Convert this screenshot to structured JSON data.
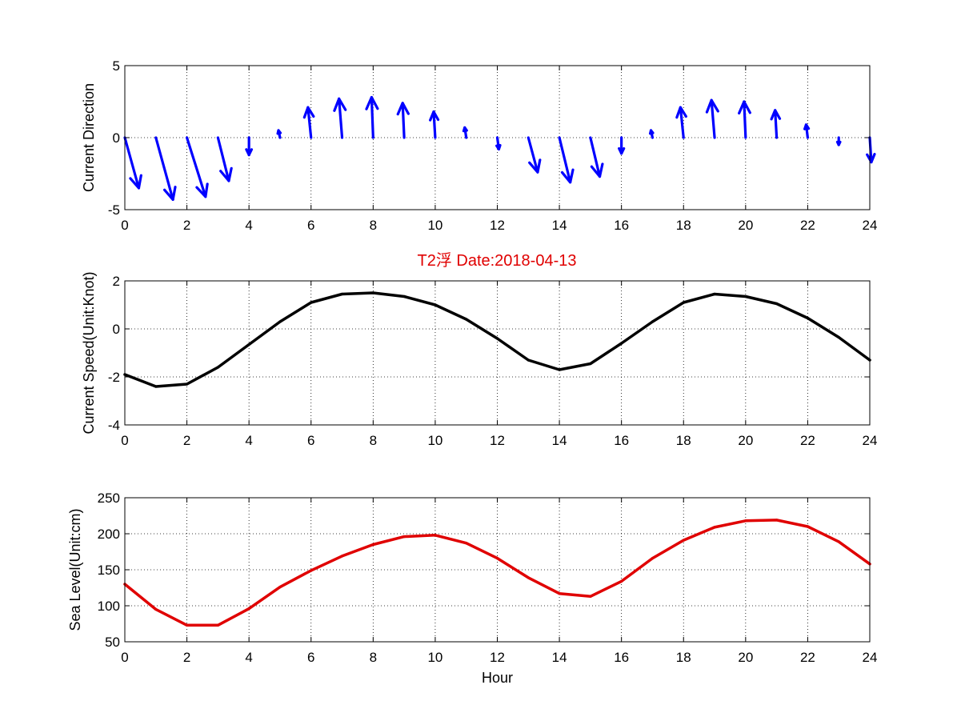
{
  "figure_title": "T2浮    Date:2018-04-13",
  "title_color": "#e00000",
  "chart_data": [
    {
      "type": "quiver",
      "ylabel": "Current Direction",
      "xlabel": "",
      "xlim": [
        0,
        24
      ],
      "ylim": [
        -5,
        5
      ],
      "xticks": [
        0,
        2,
        4,
        6,
        8,
        10,
        12,
        14,
        16,
        18,
        20,
        22,
        24
      ],
      "yticks": [
        -5,
        0,
        5
      ],
      "grid": true,
      "color": "#0000ff",
      "x": [
        0,
        1,
        2,
        3,
        4,
        5,
        6,
        7,
        8,
        9,
        10,
        11,
        12,
        13,
        14,
        15,
        16,
        17,
        18,
        19,
        20,
        21,
        22,
        23,
        24
      ],
      "u": [
        0.45,
        0.55,
        0.6,
        0.35,
        0.0,
        -0.05,
        -0.1,
        -0.1,
        -0.05,
        -0.05,
        -0.05,
        -0.05,
        0.05,
        0.3,
        0.35,
        0.3,
        0.0,
        -0.05,
        -0.1,
        -0.1,
        -0.05,
        -0.05,
        -0.05,
        0.0,
        0.05
      ],
      "v": [
        -3.5,
        -4.3,
        -4.1,
        -3.0,
        -1.2,
        0.5,
        2.1,
        2.7,
        2.8,
        2.4,
        1.8,
        0.7,
        -0.8,
        -2.4,
        -3.1,
        -2.7,
        -1.1,
        0.5,
        2.1,
        2.6,
        2.5,
        1.9,
        0.9,
        -0.5,
        -1.7
      ]
    },
    {
      "type": "line",
      "ylabel": "Current Speed(Unit:Knot)",
      "xlabel": "",
      "xlim": [
        0,
        24
      ],
      "ylim": [
        -4,
        2
      ],
      "xticks": [
        0,
        2,
        4,
        6,
        8,
        10,
        12,
        14,
        16,
        18,
        20,
        22,
        24
      ],
      "yticks": [
        -4,
        -2,
        0,
        2
      ],
      "grid": true,
      "color": "#000000",
      "x": [
        0,
        1,
        2,
        3,
        4,
        5,
        6,
        7,
        8,
        9,
        10,
        11,
        12,
        13,
        14,
        15,
        16,
        17,
        18,
        19,
        20,
        21,
        22,
        23,
        24
      ],
      "y": [
        -1.9,
        -2.4,
        -2.3,
        -1.6,
        -0.65,
        0.3,
        1.1,
        1.45,
        1.5,
        1.35,
        1.0,
        0.4,
        -0.4,
        -1.3,
        -1.7,
        -1.45,
        -0.6,
        0.3,
        1.1,
        1.45,
        1.35,
        1.05,
        0.45,
        -0.35,
        -1.3
      ]
    },
    {
      "type": "line",
      "ylabel": "Sea Level(Unit:cm)",
      "xlabel": "Hour",
      "xlim": [
        0,
        24
      ],
      "ylim": [
        50,
        250
      ],
      "xticks": [
        0,
        2,
        4,
        6,
        8,
        10,
        12,
        14,
        16,
        18,
        20,
        22,
        24
      ],
      "yticks": [
        50,
        100,
        150,
        200,
        250
      ],
      "grid": true,
      "color": "#e00000",
      "x": [
        0,
        1,
        2,
        3,
        4,
        5,
        6,
        7,
        8,
        9,
        10,
        11,
        12,
        13,
        14,
        15,
        16,
        17,
        18,
        19,
        20,
        21,
        22,
        23,
        24
      ],
      "y": [
        130,
        95,
        73,
        73,
        96,
        126,
        149,
        169,
        185,
        196,
        198,
        187,
        166,
        139,
        117,
        113,
        134,
        166,
        191,
        209,
        218,
        219,
        210,
        189,
        158
      ]
    }
  ]
}
